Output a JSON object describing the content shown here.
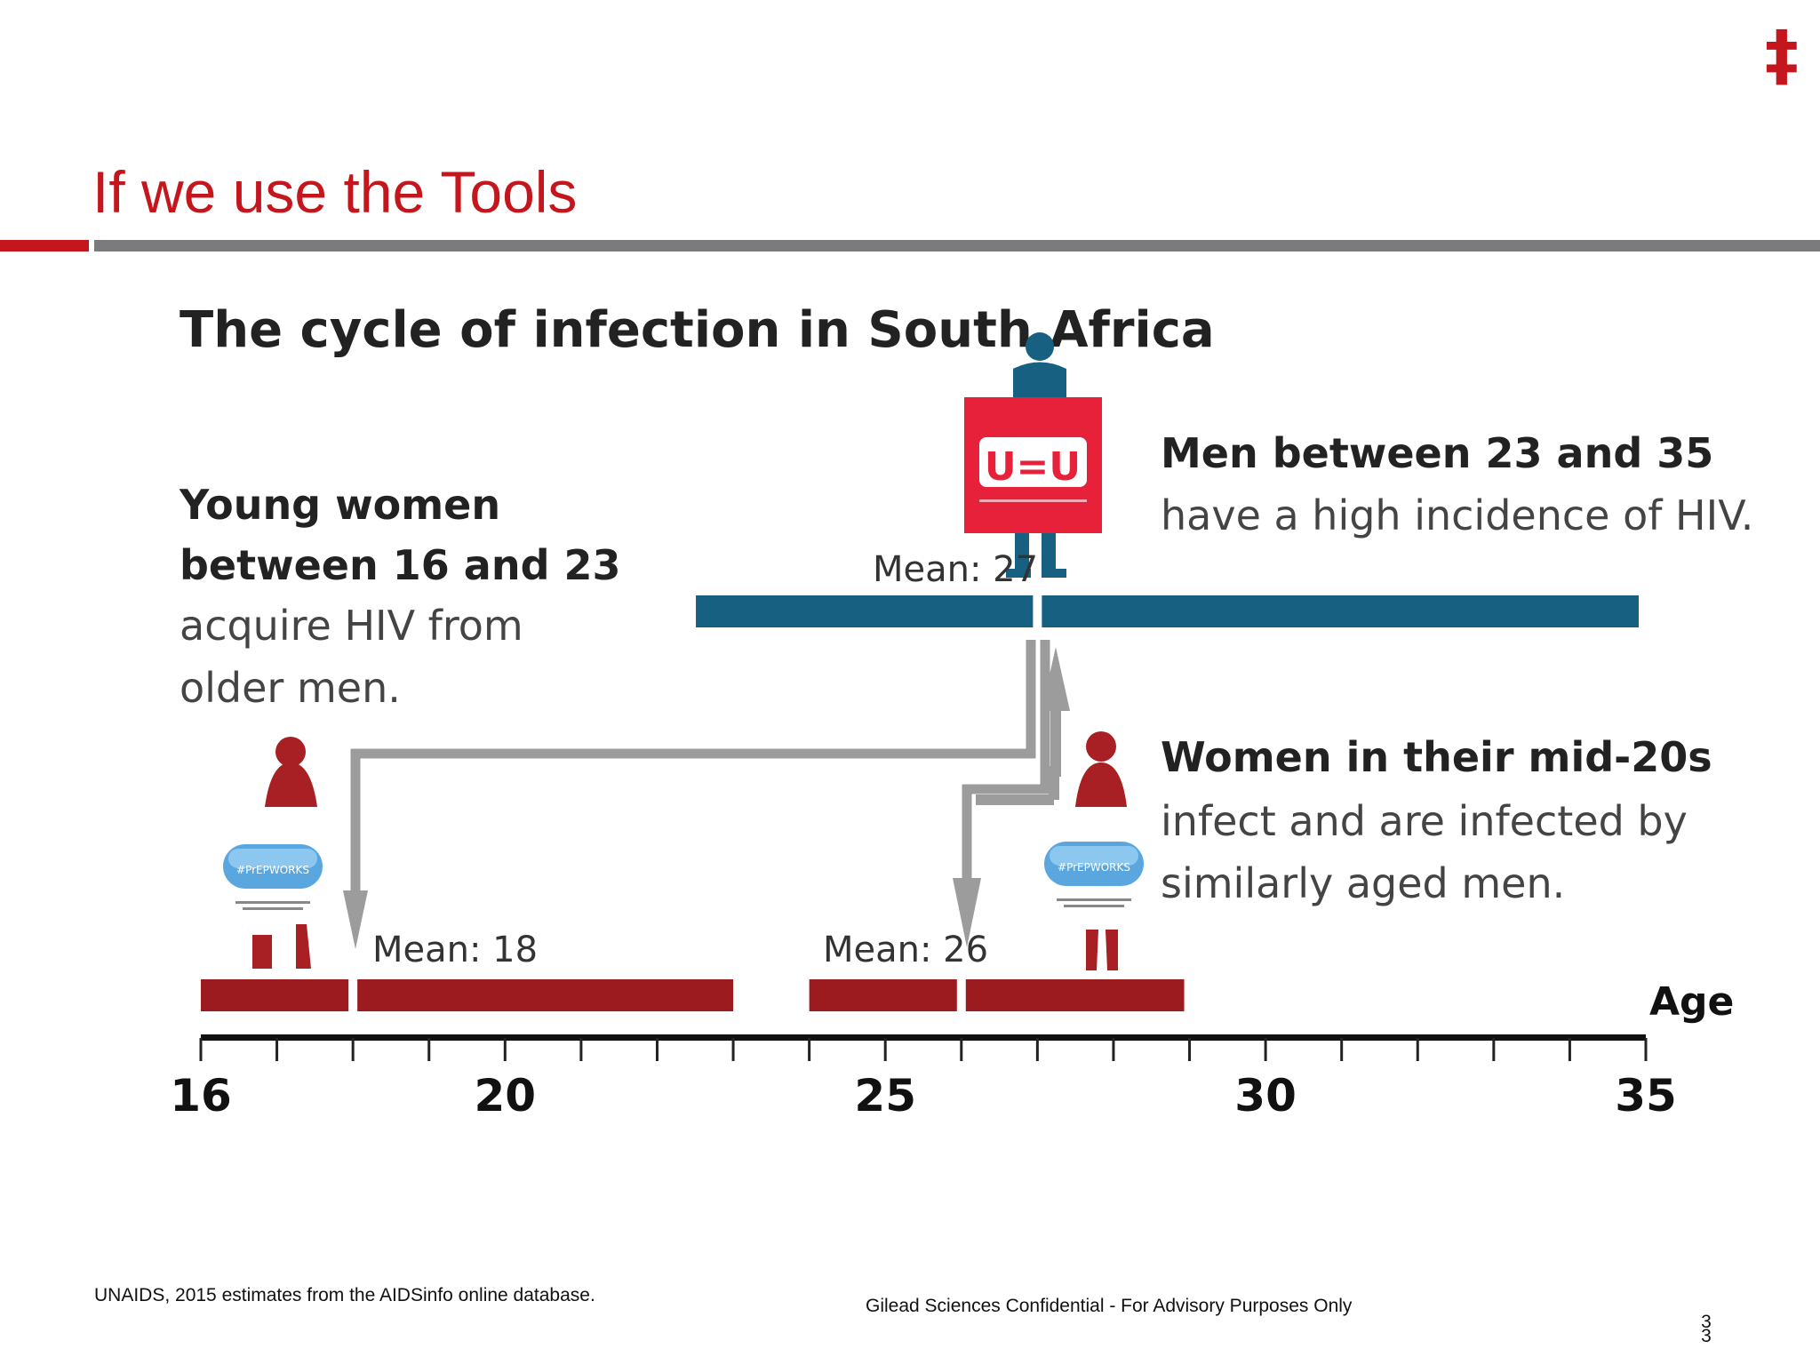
{
  "header": {
    "logo_glyph": "‡",
    "title": "If we use the Tools",
    "accent_color": "#c4161c",
    "rule_color": "#7b7b7e"
  },
  "infographic": {
    "title": "The cycle of infection in South Africa",
    "young_women": {
      "heading_line1": "Young women",
      "heading_line2": "between 16 and 23",
      "body_line1": "acquire HIV from",
      "body_line2": "older men."
    },
    "men": {
      "heading": "Men between 23 and 35",
      "body": "have a high incidence of HIV."
    },
    "women_mid20s": {
      "heading": "Women in their mid-20s",
      "body_line1": "infect and are infected by",
      "body_line2": "similarly aged men."
    },
    "uu_badge": "U=U",
    "means": {
      "men": "Mean: 27",
      "young_women": "Mean: 18",
      "women_mid20s": "Mean: 26"
    },
    "axis": {
      "label": "Age",
      "min": 16,
      "max": 35,
      "major_ticks": [
        "16",
        "20",
        "25",
        "30",
        "35"
      ]
    },
    "bars": {
      "men": {
        "from": 23,
        "to": 35,
        "mean": 27,
        "color": "#176082"
      },
      "young_women": {
        "from": 16,
        "to": 23,
        "mean": 18,
        "color": "#9b1b1e"
      },
      "women_mid20s": {
        "from": 24,
        "to": 29,
        "mean": 26,
        "color": "#9b1b1e"
      }
    },
    "figure_colors": {
      "woman": "#a81f24",
      "man": "#176082",
      "arrow": "#9c9c9c"
    }
  },
  "footer": {
    "source": "UNAIDS, 2015 estimates from the AIDSinfo online database.",
    "confidential": "Gilead Sciences Confidential - For Advisory Purposes Only",
    "page_line1": "3",
    "page_line2": "3"
  }
}
